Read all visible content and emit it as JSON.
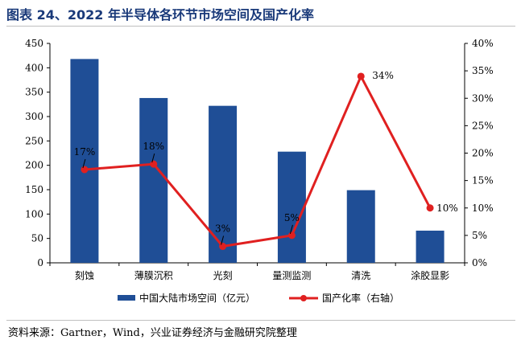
{
  "title": "图表 24、2022 年半导体各环节市场空间及国产化率",
  "source": "资料来源：Gartner，Wind，兴业证券经济与金融研究院整理",
  "colors": {
    "bar": "#1f4e96",
    "line": "#e02020",
    "axis": "#000000",
    "title": "#1a3a7a"
  },
  "chart_data": {
    "type": "bar",
    "categories": [
      "刻蚀",
      "薄膜沉积",
      "光刻",
      "量测监测",
      "清洗",
      "涂胶显影"
    ],
    "series": [
      {
        "name": "中国大陆市场空间（亿元）",
        "type": "bar",
        "axis": "left",
        "values": [
          418,
          338,
          322,
          228,
          149,
          66
        ]
      },
      {
        "name": "国产化率（右轴）",
        "type": "line",
        "axis": "right",
        "values": [
          17,
          18,
          3,
          5,
          34,
          10
        ]
      }
    ],
    "left_axis": {
      "min": 0,
      "max": 450,
      "step": 50,
      "tick_labels": [
        "0",
        "50",
        "100",
        "150",
        "200",
        "250",
        "300",
        "350",
        "400",
        "450"
      ]
    },
    "right_axis": {
      "min": 0,
      "max": 40,
      "step": 5,
      "tick_labels": [
        "0%",
        "5%",
        "10%",
        "15%",
        "20%",
        "25%",
        "30%",
        "35%",
        "40%"
      ]
    },
    "data_labels": [
      "17%",
      "18%",
      "3%",
      "5%",
      "34%",
      "10%"
    ],
    "legend": {
      "position": "bottom",
      "items": [
        "中国大陆市场空间（亿元）",
        "国产化率（右轴）"
      ]
    },
    "grid": false
  }
}
